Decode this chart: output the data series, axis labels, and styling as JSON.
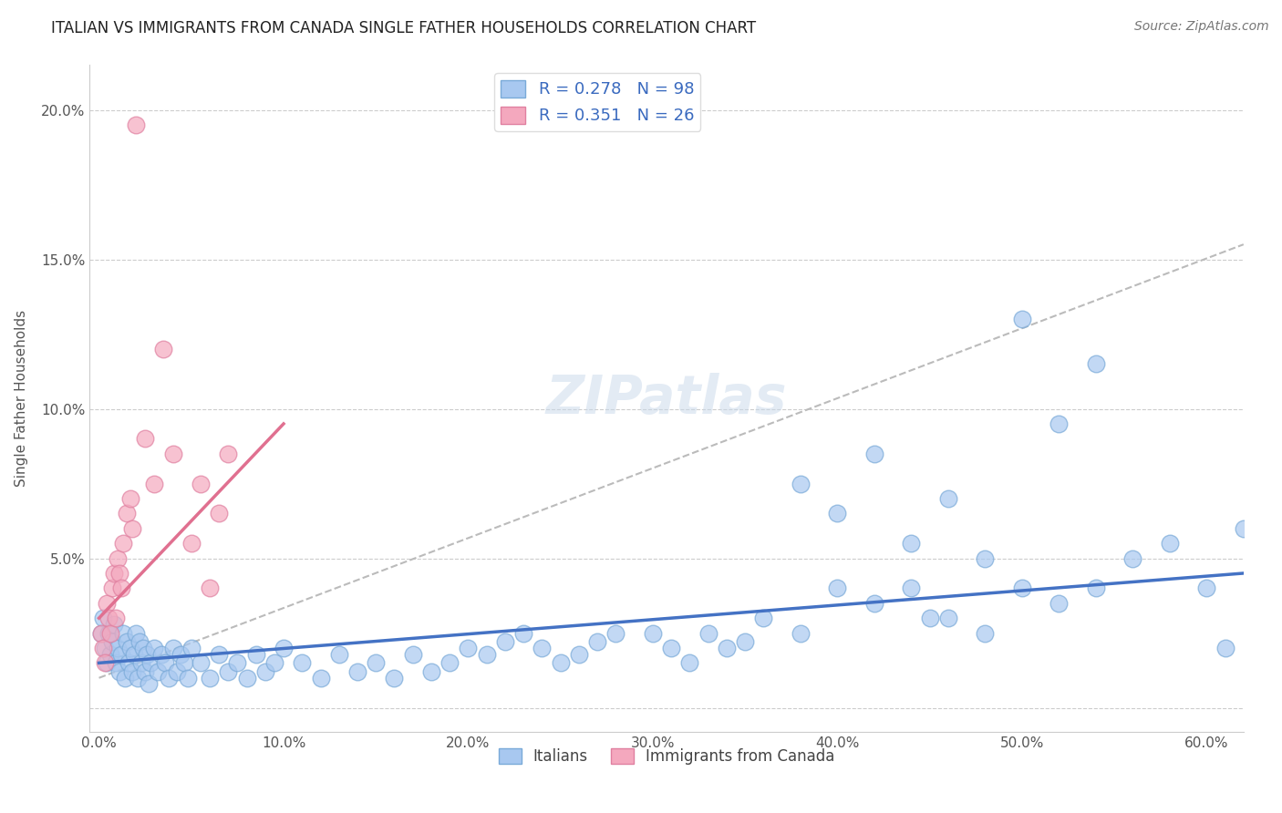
{
  "title": "ITALIAN VS IMMIGRANTS FROM CANADA SINGLE FATHER HOUSEHOLDS CORRELATION CHART",
  "source": "Source: ZipAtlas.com",
  "ylabel": "Single Father Households",
  "xlim": [
    -0.005,
    0.62
  ],
  "ylim": [
    -0.008,
    0.215
  ],
  "xticks": [
    0.0,
    0.1,
    0.2,
    0.3,
    0.4,
    0.5,
    0.6
  ],
  "yticks": [
    0.0,
    0.05,
    0.1,
    0.15,
    0.2
  ],
  "ytick_labels": [
    "",
    "5.0%",
    "10.0%",
    "15.0%",
    "20.0%"
  ],
  "xtick_labels": [
    "0.0%",
    "10.0%",
    "20.0%",
    "30.0%",
    "40.0%",
    "50.0%",
    "60.0%"
  ],
  "legend1_label": "R = 0.278   N = 98",
  "legend2_label": "R = 0.351   N = 26",
  "legend1_color": "#a8c8f0",
  "legend2_color": "#f4a8be",
  "trendline_italian_color": "#4472c4",
  "trendline_canada_color": "#e07090",
  "trendline_gray_color": "#bbbbbb",
  "watermark": "ZIPatlas",
  "italians_x": [
    0.001,
    0.002,
    0.003,
    0.004,
    0.005,
    0.006,
    0.007,
    0.008,
    0.009,
    0.01,
    0.011,
    0.012,
    0.013,
    0.014,
    0.015,
    0.016,
    0.017,
    0.018,
    0.019,
    0.02,
    0.021,
    0.022,
    0.023,
    0.024,
    0.025,
    0.026,
    0.027,
    0.028,
    0.03,
    0.032,
    0.034,
    0.036,
    0.038,
    0.04,
    0.042,
    0.044,
    0.046,
    0.048,
    0.05,
    0.055,
    0.06,
    0.065,
    0.07,
    0.075,
    0.08,
    0.085,
    0.09,
    0.095,
    0.1,
    0.11,
    0.12,
    0.13,
    0.14,
    0.15,
    0.16,
    0.17,
    0.18,
    0.19,
    0.2,
    0.21,
    0.22,
    0.23,
    0.24,
    0.25,
    0.26,
    0.27,
    0.28,
    0.3,
    0.31,
    0.32,
    0.33,
    0.34,
    0.35,
    0.36,
    0.38,
    0.4,
    0.42,
    0.44,
    0.45,
    0.46,
    0.48,
    0.5,
    0.52,
    0.54,
    0.56,
    0.58,
    0.6,
    0.61,
    0.62,
    0.38,
    0.4,
    0.42,
    0.44,
    0.46,
    0.48,
    0.5,
    0.52,
    0.54
  ],
  "italians_y": [
    0.025,
    0.03,
    0.02,
    0.015,
    0.025,
    0.018,
    0.022,
    0.028,
    0.015,
    0.02,
    0.012,
    0.018,
    0.025,
    0.01,
    0.022,
    0.015,
    0.02,
    0.012,
    0.018,
    0.025,
    0.01,
    0.022,
    0.015,
    0.02,
    0.012,
    0.018,
    0.008,
    0.015,
    0.02,
    0.012,
    0.018,
    0.015,
    0.01,
    0.02,
    0.012,
    0.018,
    0.015,
    0.01,
    0.02,
    0.015,
    0.01,
    0.018,
    0.012,
    0.015,
    0.01,
    0.018,
    0.012,
    0.015,
    0.02,
    0.015,
    0.01,
    0.018,
    0.012,
    0.015,
    0.01,
    0.018,
    0.012,
    0.015,
    0.02,
    0.018,
    0.022,
    0.025,
    0.02,
    0.015,
    0.018,
    0.022,
    0.025,
    0.025,
    0.02,
    0.015,
    0.025,
    0.02,
    0.022,
    0.03,
    0.025,
    0.04,
    0.035,
    0.04,
    0.03,
    0.03,
    0.025,
    0.04,
    0.035,
    0.04,
    0.05,
    0.055,
    0.04,
    0.02,
    0.06,
    0.075,
    0.065,
    0.085,
    0.055,
    0.07,
    0.05,
    0.13,
    0.095,
    0.115
  ],
  "canada_x": [
    0.001,
    0.002,
    0.003,
    0.004,
    0.005,
    0.006,
    0.007,
    0.008,
    0.009,
    0.01,
    0.011,
    0.012,
    0.013,
    0.015,
    0.017,
    0.018,
    0.02,
    0.025,
    0.03,
    0.035,
    0.04,
    0.05,
    0.055,
    0.06,
    0.065,
    0.07
  ],
  "canada_y": [
    0.025,
    0.02,
    0.015,
    0.035,
    0.03,
    0.025,
    0.04,
    0.045,
    0.03,
    0.05,
    0.045,
    0.04,
    0.055,
    0.065,
    0.07,
    0.06,
    0.195,
    0.09,
    0.075,
    0.12,
    0.085,
    0.055,
    0.075,
    0.04,
    0.065,
    0.085
  ],
  "italian_trend_x": [
    0.0,
    0.62
  ],
  "italian_trend_y": [
    0.015,
    0.045
  ],
  "canada_trend_x": [
    0.0,
    0.1
  ],
  "canada_trend_y": [
    0.03,
    0.095
  ],
  "gray_dash_trend_x": [
    0.0,
    0.62
  ],
  "gray_dash_trend_y": [
    0.01,
    0.155
  ]
}
